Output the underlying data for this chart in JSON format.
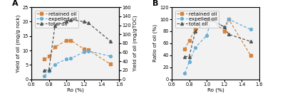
{
  "A": {
    "retained_ro": [
      0.75,
      0.8,
      0.87,
      1.0,
      1.05,
      1.2,
      1.25,
      1.5
    ],
    "retained_y": [
      7.0,
      8.0,
      11.2,
      13.5,
      13.5,
      10.5,
      10.2,
      5.3
    ],
    "expelled_ro": [
      0.75,
      0.8,
      0.87,
      1.0,
      1.05,
      1.2,
      1.25,
      1.5
    ],
    "expelled_y": [
      1.2,
      2.8,
      5.2,
      7.0,
      7.2,
      9.5,
      9.8,
      8.0
    ],
    "total_ro": [
      0.75,
      0.8,
      0.87,
      1.0,
      1.05,
      1.2,
      1.25,
      1.5
    ],
    "total_y": [
      20.0,
      21.0,
      120.0,
      128.0,
      132.0,
      128.0,
      125.0,
      85.0
    ],
    "ylim_left": [
      0,
      25
    ],
    "ylim_right": [
      0,
      160
    ],
    "yticks_left": [
      0,
      5,
      10,
      15,
      20,
      25
    ],
    "yticks_right": [
      0,
      20,
      40,
      60,
      80,
      100,
      120,
      140,
      160
    ],
    "ylabel_left": "Yield of oil (mg/g rock)",
    "ylabel_right": "Yield of oil (mg/gTOC)",
    "label": "A"
  },
  "B": {
    "retained_ro": [
      0.75,
      0.8,
      0.87,
      1.0,
      1.05,
      1.2,
      1.25,
      1.5
    ],
    "retained_y": [
      50.0,
      65.0,
      83.0,
      100.0,
      100.0,
      80.0,
      100.0,
      40.0
    ],
    "expelled_ro": [
      0.75,
      0.8,
      0.87,
      1.0,
      1.05,
      1.2,
      1.25,
      1.5
    ],
    "expelled_y": [
      10.0,
      29.0,
      53.0,
      73.0,
      100.0,
      87.0,
      100.0,
      83.0
    ],
    "total_ro": [
      0.75,
      0.8,
      0.87,
      1.0,
      1.05,
      1.2,
      1.25,
      1.5
    ],
    "total_y": [
      38.0,
      38.0,
      80.0,
      98.0,
      100.0,
      87.0,
      75.0,
      63.0
    ],
    "ylim_left": [
      0,
      120
    ],
    "yticks_left": [
      0,
      20,
      40,
      60,
      80,
      100,
      120
    ],
    "ylabel_left": "Ratio of oil (%)",
    "label": "B"
  },
  "retained_color": "#d4843e",
  "expelled_color": "#6aaed6",
  "total_color": "#555555",
  "xlim": [
    0.6,
    1.6
  ],
  "xticks": [
    0.6,
    0.8,
    1.0,
    1.2,
    1.4,
    1.6
  ],
  "xlabel": "Ro (%)",
  "legend_fontsize": 5.0,
  "axis_fontsize": 5.2,
  "tick_fontsize": 4.8,
  "bg_color": "#f2f2f2"
}
